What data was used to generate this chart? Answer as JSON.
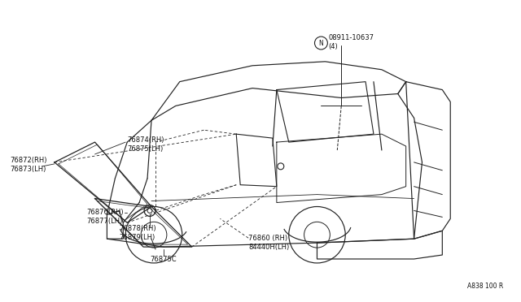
{
  "background_color": "#ffffff",
  "line_color": "#222222",
  "text_color": "#111111",
  "diagram_note": "A838 100 R",
  "font_size": 6.0,
  "labels": {
    "part_n": "N08911-10637\n(4)",
    "part_74_75": "76874(RH)\n76875(LH)",
    "part_72_73": "76872(RH)\n76873(LH)",
    "part_76_77": "76876(RH)\n76877(LH)",
    "part_78_79": "76878(RH)\n76879(LH)",
    "part_75c": "76875C",
    "part_60": "76860 (RH)\n84440H(LH)"
  }
}
